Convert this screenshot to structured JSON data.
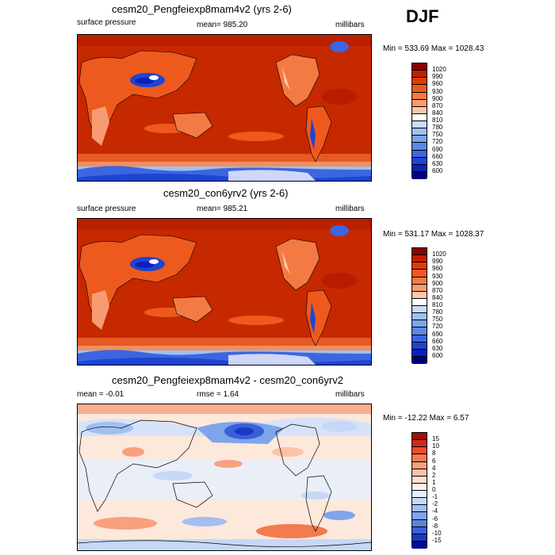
{
  "season": "DJF",
  "panels": [
    {
      "title": "cesm20_Pengfeiexp8mam4v2 (yrs 2-6)",
      "left_label": "surface pressure",
      "center_label": "mean= 985.20",
      "right_label": "millibars",
      "minmax": "Min = 533.69 Max = 1028.43",
      "cbar_labels": [
        "1020",
        "990",
        "960",
        "930",
        "900",
        "870",
        "840",
        "810",
        "780",
        "750",
        "720",
        "690",
        "660",
        "630",
        "600"
      ],
      "cbar_colors": [
        "#8b0000",
        "#c41e00",
        "#e03c00",
        "#ee5a1e",
        "#f47a44",
        "#f99b72",
        "#fcc9a8",
        "#ffffff",
        "#c9dcf7",
        "#9fc0ef",
        "#7aa6ea",
        "#5c88e6",
        "#3c66e0",
        "#1e44d4",
        "#0a22b8",
        "#000080"
      ]
    },
    {
      "title": "cesm20_con6yrv2 (yrs 2-6)",
      "left_label": "surface pressure",
      "center_label": "mean= 985.21",
      "right_label": "millibars",
      "minmax": "Min = 531.17 Max = 1028.37",
      "cbar_labels": [
        "1020",
        "990",
        "960",
        "930",
        "900",
        "870",
        "840",
        "810",
        "780",
        "750",
        "720",
        "690",
        "660",
        "630",
        "600"
      ],
      "cbar_colors": [
        "#8b0000",
        "#c41e00",
        "#e03c00",
        "#ee5a1e",
        "#f47a44",
        "#f99b72",
        "#fcc9a8",
        "#ffffff",
        "#c9dcf7",
        "#9fc0ef",
        "#7aa6ea",
        "#5c88e6",
        "#3c66e0",
        "#1e44d4",
        "#0a22b8",
        "#000080"
      ]
    },
    {
      "title": "cesm20_Pengfeiexp8mam4v2 - cesm20_con6yrv2",
      "left_label": "mean =  -0.01",
      "center_label": "rmse =   1.64",
      "right_label": "millibars",
      "minmax": "Min = -12.22 Max =   6.57",
      "cbar_labels": [
        "15",
        "10",
        "8",
        "6",
        "4",
        "2",
        "1",
        "0",
        "-1",
        "-2",
        "-4",
        "-6",
        "-8",
        "-10",
        "-15"
      ],
      "cbar_colors": [
        "#a01010",
        "#d02a14",
        "#e8502a",
        "#f47a50",
        "#f9a07e",
        "#fcc3a8",
        "#fde0d0",
        "#fff2e8",
        "#e6eefb",
        "#c6d8f5",
        "#a3bff0",
        "#7ea4ea",
        "#5a84e2",
        "#3a60d8",
        "#1a38c4",
        "#000a96"
      ]
    }
  ]
}
